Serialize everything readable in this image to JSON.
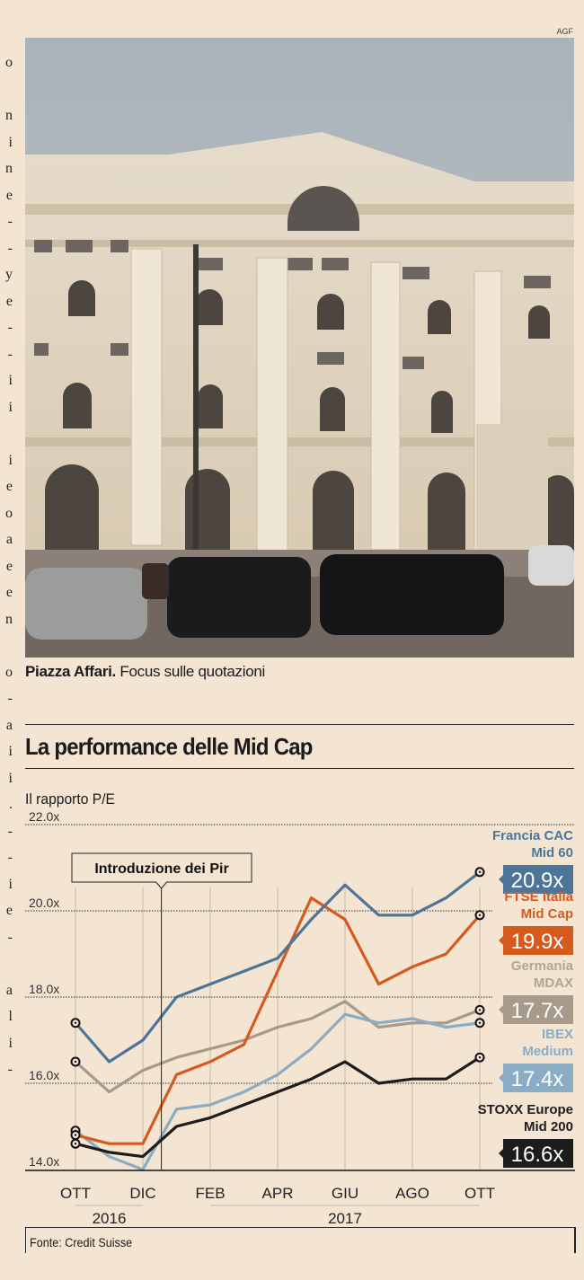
{
  "photo": {
    "credit": "AGF",
    "caption_bold": "Piazza Affari.",
    "caption_text": " Focus sulle quotazioni"
  },
  "margin_fragments": [
    "o",
    "",
    "n",
    "i",
    "n",
    "e",
    "-",
    "-",
    "y",
    "e",
    "-",
    "-",
    "i",
    "i",
    "",
    "i",
    "e",
    "o",
    "a",
    "e",
    "e",
    "n",
    "",
    "o",
    "-",
    "a",
    "i",
    "i",
    ".",
    "-",
    "-",
    "i",
    "e",
    "-",
    "",
    "a",
    "l",
    "i",
    "-"
  ],
  "chart_data": {
    "type": "line",
    "title": "La performance delle Mid Cap",
    "subtitle": "Il rapporto P/E",
    "ylabel": "",
    "xlabel": "",
    "ylim": [
      14.0,
      22.0
    ],
    "yticks": [
      14.0,
      16.0,
      18.0,
      20.0,
      22.0
    ],
    "ytick_labels": [
      "14.0x",
      "16.0x",
      "18.0x",
      "20.0x",
      "22.0x"
    ],
    "grid": true,
    "x_months": [
      "Ott 2016",
      "Nov",
      "Dic",
      "Gen",
      "Feb",
      "Mar",
      "Apr",
      "Mag",
      "Giu",
      "Lug",
      "Ago",
      "Set",
      "Ott 2017"
    ],
    "xtick_labels": [
      {
        "label": "OTT",
        "month": 0
      },
      {
        "label": "DIC",
        "month": 2
      },
      {
        "label": "FEB",
        "month": 4
      },
      {
        "label": "APR",
        "month": 6
      },
      {
        "label": "GIU",
        "month": 8
      },
      {
        "label": "AGO",
        "month": 10
      },
      {
        "label": "OTT",
        "month": 12
      }
    ],
    "year_labels": [
      {
        "label": "2016",
        "from": 0,
        "to": 2
      },
      {
        "label": "2017",
        "from": 4,
        "to": 12
      }
    ],
    "annotation": {
      "text": "Introduzione dei Pir",
      "month": 2.55
    },
    "legend_placement": "right",
    "series": [
      {
        "name": "Francia CAC Mid 60",
        "name_lines": [
          "Francia CAC",
          "Mid 60"
        ],
        "final_label": "20.9x",
        "color": "#4c7598",
        "label_color": "#4c7598",
        "values": [
          17.4,
          16.5,
          17.0,
          18.0,
          18.3,
          18.6,
          18.9,
          19.8,
          20.6,
          19.9,
          19.9,
          20.3,
          20.9
        ]
      },
      {
        "name": "FTSE Italia Mid Cap",
        "name_lines": [
          "FTSE Italia",
          "Mid Cap"
        ],
        "final_label": "19.9x",
        "color": "#d45a1e",
        "label_color": "#d45a1e",
        "values": [
          14.8,
          14.6,
          14.6,
          16.2,
          16.5,
          16.9,
          18.6,
          20.3,
          19.8,
          18.3,
          18.7,
          19.0,
          19.9
        ]
      },
      {
        "name": "Germania MDAX",
        "name_lines": [
          "Germania",
          "MDAX"
        ],
        "final_label": "17.7x",
        "color": "#a79a8b",
        "label_color": "#b1a596",
        "values": [
          16.5,
          15.8,
          16.3,
          16.6,
          16.8,
          17.0,
          17.3,
          17.5,
          17.9,
          17.3,
          17.4,
          17.4,
          17.7
        ]
      },
      {
        "name": "IBEX Medium",
        "name_lines": [
          "IBEX",
          "Medium"
        ],
        "final_label": "17.4x",
        "color": "#8aacc4",
        "label_color": "#8aacc4",
        "values": [
          14.9,
          14.3,
          14.0,
          15.4,
          15.5,
          15.8,
          16.2,
          16.8,
          17.6,
          17.4,
          17.5,
          17.3,
          17.4
        ]
      },
      {
        "name": "STOXX Europe Mid 200",
        "name_lines": [
          "STOXX Europe",
          "Mid 200"
        ],
        "final_label": "16.6x",
        "color": "#1c1c1c",
        "label_color": "#1c1c1c",
        "values": [
          14.6,
          14.4,
          14.3,
          15.0,
          15.2,
          15.5,
          15.8,
          16.1,
          16.5,
          16.0,
          16.1,
          16.1,
          16.6
        ]
      }
    ],
    "source": "Fonte: Credit Suisse"
  }
}
